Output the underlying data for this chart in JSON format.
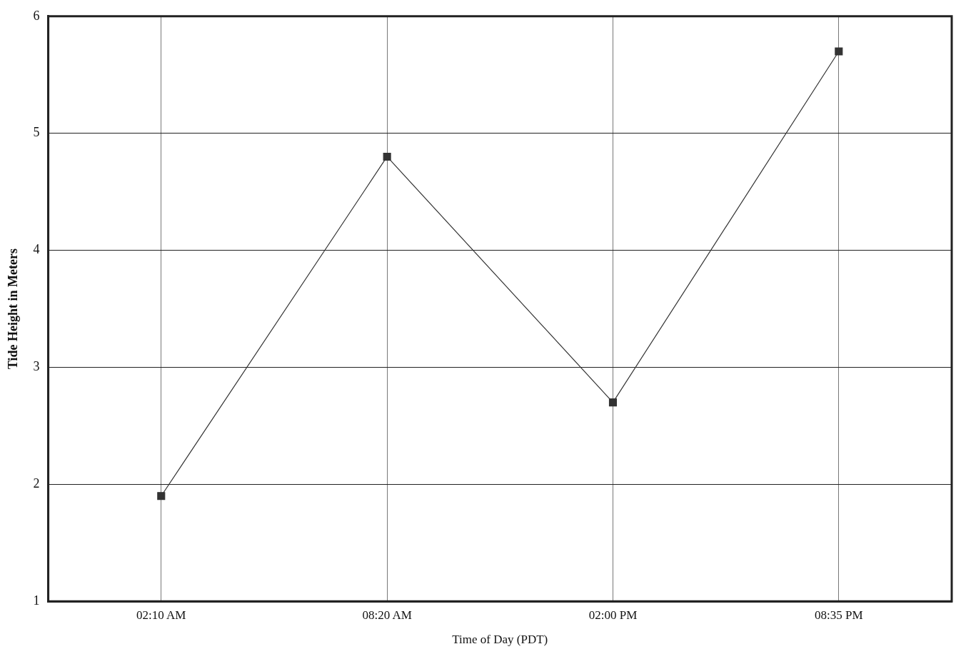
{
  "chart_data": {
    "type": "line",
    "xlabel": "Time of Day (PDT)",
    "ylabel": "Tide Height in Meters",
    "categories": [
      "02:10 AM",
      "08:20 AM",
      "02:00 PM",
      "08:35 PM"
    ],
    "series": [
      {
        "color": "#333333",
        "values": [
          1.9,
          4.8,
          2.7,
          5.7
        ]
      }
    ],
    "ylim": [
      1,
      6
    ],
    "yticks": [
      1,
      2,
      3,
      4,
      5,
      6
    ],
    "grid": true,
    "marker": "square",
    "line_style": "solid",
    "legend": false
  }
}
